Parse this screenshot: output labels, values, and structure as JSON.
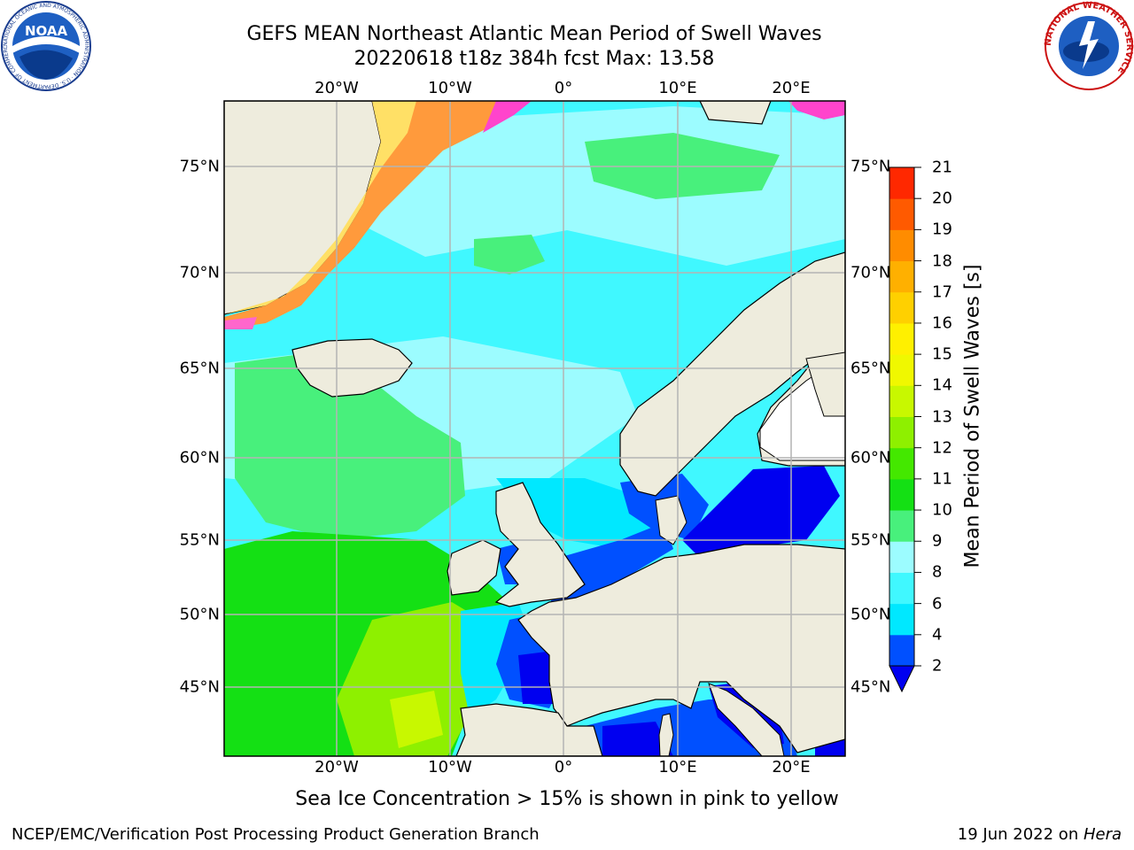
{
  "title": {
    "line1": "GEFS MEAN Northeast Atlantic Mean Period of Swell Waves",
    "line2": "20220618 t18z 384h fcst   Max: 13.58"
  },
  "map": {
    "lon_labels": [
      "20°W",
      "10°W",
      "0°",
      "10°E",
      "20°E"
    ],
    "lat_labels": [
      "75°N",
      "70°N",
      "65°N",
      "60°N",
      "55°N",
      "50°N",
      "45°N"
    ],
    "field": "swell wave mean period",
    "sea_ice_overlay": true,
    "land_color": "#eeecdd"
  },
  "colorbar": {
    "title": "Mean Period of Swell Waves [s]",
    "tick_labels": [
      "2",
      "4",
      "6",
      "8",
      "9",
      "10",
      "11",
      "12",
      "13",
      "14",
      "15",
      "16",
      "17",
      "18",
      "19",
      "20",
      "21"
    ],
    "colors": [
      "#0050ff",
      "#00e8ff",
      "#40f8ff",
      "#9cfcff",
      "#48f07c",
      "#14e014",
      "#44e800",
      "#8ef000",
      "#c8f800",
      "#f0f800",
      "#fff000",
      "#ffd000",
      "#ffb000",
      "#ff8c00",
      "#ff5a00",
      "#ff2800",
      "#ff0000"
    ],
    "under_color": "#0000f0"
  },
  "note": "Sea Ice Concentration > 15% is shown in pink to yellow",
  "footer": {
    "left": "NCEP/EMC/Verification Post Processing Product Generation Branch",
    "right_prefix": "19 Jun 2022 on ",
    "right_host": "Hera"
  },
  "logos": {
    "noaa_text": "NOAA",
    "noaa_ring": "NATIONAL OCEANIC AND ATMOSPHERIC ADMINISTRATION · U.S. DEPARTMENT OF COMMERCE",
    "nws_ring": "NATIONAL WEATHER SERVICE"
  }
}
